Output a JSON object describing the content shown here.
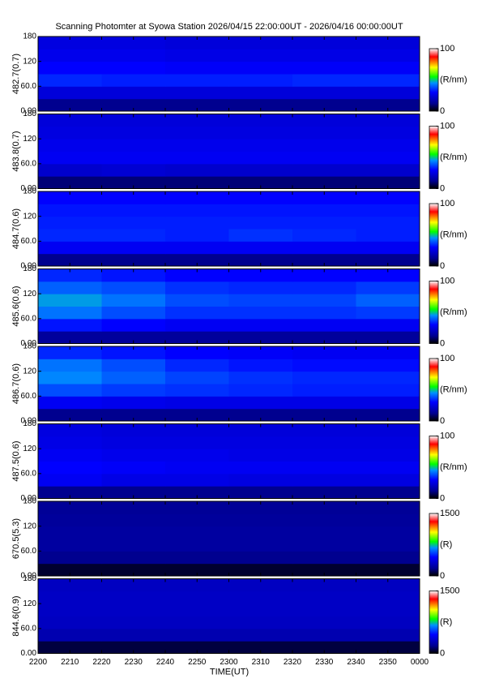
{
  "chart_data": [
    {
      "type": "heatmap",
      "title": "Scanning Photomter at Syowa Station 2026/04/15 22:00:00UT - 2026/04/16 00:00:00UT",
      "ylabel": "482.7(0.7)",
      "ylim": [
        0,
        180
      ],
      "yticks": [
        {
          "value": 0,
          "label": "0.00"
        },
        {
          "value": 60,
          "label": "60.0"
        },
        120,
        180
      ],
      "clim": [
        0,
        100
      ],
      "cticks": [
        0,
        100
      ],
      "clabel": "(R/nm)",
      "z": [
        [
          12,
          12,
          12,
          12,
          12,
          12
        ],
        [
          24,
          24,
          24,
          24,
          24,
          24
        ],
        [
          34,
          33,
          33,
          33,
          34,
          34
        ],
        [
          30,
          30,
          29,
          29,
          29,
          29
        ],
        [
          27,
          27,
          26,
          26,
          26,
          26
        ],
        [
          25,
          25,
          24,
          24,
          24,
          24
        ]
      ]
    },
    {
      "type": "heatmap",
      "ylabel": "483.8(0.7)",
      "ylim": [
        0,
        180
      ],
      "yticks": [
        {
          "value": 0,
          "label": "0.00"
        },
        {
          "value": 60,
          "label": "60.0"
        },
        120,
        180
      ],
      "clim": [
        0,
        100
      ],
      "cticks": [
        0,
        100
      ],
      "clabel": "(R/nm)",
      "z": [
        [
          10,
          10,
          10,
          10,
          10,
          10
        ],
        [
          22,
          23,
          22,
          22,
          22,
          22
        ],
        [
          28,
          28,
          28,
          28,
          28,
          28
        ],
        [
          27,
          27,
          27,
          27,
          27,
          27
        ],
        [
          25,
          25,
          25,
          25,
          25,
          25
        ],
        [
          24,
          24,
          24,
          24,
          24,
          24
        ]
      ]
    },
    {
      "type": "heatmap",
      "ylabel": "484.7(0.6)",
      "ylim": [
        0,
        180
      ],
      "yticks": [
        {
          "value": 0,
          "label": "0.00"
        },
        {
          "value": 60,
          "label": "60.0"
        },
        120,
        180
      ],
      "clim": [
        0,
        100
      ],
      "cticks": [
        0,
        100
      ],
      "clabel": "(R/nm)",
      "z": [
        [
          12,
          12,
          12,
          12,
          12,
          12
        ],
        [
          28,
          28,
          28,
          28,
          28,
          28
        ],
        [
          34,
          34,
          33,
          35,
          34,
          33
        ],
        [
          33,
          33,
          33,
          33,
          33,
          33
        ],
        [
          32,
          32,
          32,
          32,
          32,
          32
        ],
        [
          30,
          30,
          30,
          30,
          30,
          30
        ]
      ]
    },
    {
      "type": "heatmap",
      "ylabel": "485.6(0.6)",
      "ylim": [
        0,
        180
      ],
      "yticks": [
        {
          "value": 0,
          "label": "0.00"
        },
        {
          "value": 60,
          "label": "60.0"
        },
        120,
        180
      ],
      "clim": [
        0,
        100
      ],
      "cticks": [
        0,
        100
      ],
      "clabel": "(R/nm)",
      "z": [
        [
          14,
          14,
          14,
          14,
          14,
          14
        ],
        [
          32,
          30,
          28,
          28,
          28,
          28
        ],
        [
          42,
          38,
          35,
          35,
          35,
          36
        ],
        [
          46,
          42,
          38,
          37,
          37,
          40
        ],
        [
          40,
          38,
          35,
          34,
          34,
          36
        ],
        [
          34,
          32,
          30,
          30,
          30,
          30
        ]
      ]
    },
    {
      "type": "heatmap",
      "ylabel": "486.7(0.6)",
      "ylim": [
        0,
        180
      ],
      "yticks": [
        {
          "value": 0,
          "label": "0.00"
        },
        {
          "value": 60,
          "label": "60.0"
        },
        120,
        180
      ],
      "clim": [
        0,
        100
      ],
      "cticks": [
        0,
        100
      ],
      "clabel": "(R/nm)",
      "z": [
        [
          12,
          12,
          12,
          12,
          12,
          12
        ],
        [
          28,
          27,
          26,
          26,
          26,
          26
        ],
        [
          38,
          36,
          35,
          34,
          33,
          33
        ],
        [
          44,
          40,
          37,
          35,
          34,
          34
        ],
        [
          42,
          38,
          34,
          32,
          31,
          31
        ],
        [
          34,
          32,
          30,
          29,
          28,
          28
        ]
      ]
    },
    {
      "type": "heatmap",
      "ylabel": "487.5(0.6)",
      "ylim": [
        0,
        180
      ],
      "yticks": [
        {
          "value": 0,
          "label": "0.00"
        },
        {
          "value": 60,
          "label": "60.0"
        },
        120,
        180
      ],
      "clim": [
        0,
        100
      ],
      "cticks": [
        0,
        100
      ],
      "clabel": "(R/nm)",
      "z": [
        [
          12,
          12,
          12,
          12,
          12,
          12
        ],
        [
          28,
          26,
          26,
          25,
          25,
          25
        ],
        [
          30,
          29,
          28,
          28,
          28,
          28
        ],
        [
          28,
          27,
          27,
          26,
          26,
          26
        ],
        [
          26,
          25,
          25,
          25,
          25,
          25
        ],
        [
          25,
          24,
          24,
          24,
          24,
          24
        ]
      ]
    },
    {
      "type": "heatmap",
      "ylabel": "670.5(5.3)",
      "ylim": [
        0,
        180
      ],
      "yticks": [
        {
          "value": 0,
          "label": "0.00"
        },
        {
          "value": 60,
          "label": "60.0"
        },
        120,
        180
      ],
      "clim": [
        0,
        1500
      ],
      "cticks": [
        0,
        1500
      ],
      "clabel": "(R)",
      "z": [
        [
          60,
          60,
          60,
          60,
          60,
          60
        ],
        [
          180,
          180,
          180,
          180,
          180,
          180
        ],
        [
          220,
          220,
          220,
          220,
          220,
          220
        ],
        [
          220,
          220,
          220,
          220,
          220,
          220
        ],
        [
          210,
          210,
          210,
          210,
          210,
          210
        ],
        [
          200,
          200,
          200,
          200,
          200,
          200
        ]
      ]
    },
    {
      "type": "heatmap",
      "ylabel": "844.6(0.9)",
      "ylim": [
        0,
        180
      ],
      "yticks": [
        {
          "value": 0,
          "label": "0.00"
        },
        {
          "value": 60,
          "label": "60.0"
        },
        120,
        180
      ],
      "clim": [
        0,
        1500
      ],
      "cticks": [
        0,
        1500
      ],
      "clabel": "(R)",
      "z": [
        [
          80,
          80,
          80,
          80,
          80,
          80
        ],
        [
          260,
          260,
          260,
          260,
          260,
          260
        ],
        [
          300,
          300,
          300,
          300,
          300,
          300
        ],
        [
          310,
          310,
          310,
          310,
          310,
          310
        ],
        [
          310,
          310,
          310,
          310,
          310,
          310
        ],
        [
          300,
          300,
          300,
          300,
          300,
          300
        ]
      ],
      "xlabel": "TIME(UT)",
      "xlim": [
        0,
        120
      ],
      "xticks": [
        {
          "value": 0,
          "label": "2200"
        },
        {
          "value": 10,
          "label": "2210"
        },
        {
          "value": 20,
          "label": "2220"
        },
        {
          "value": 30,
          "label": "2230"
        },
        {
          "value": 40,
          "label": "2240"
        },
        {
          "value": 50,
          "label": "2250"
        },
        {
          "value": 60,
          "label": "2300"
        },
        {
          "value": 70,
          "label": "2310"
        },
        {
          "value": 80,
          "label": "2320"
        },
        {
          "value": 90,
          "label": "2330"
        },
        {
          "value": 100,
          "label": "2340"
        },
        {
          "value": 110,
          "label": "2350"
        },
        {
          "value": 120,
          "label": "0000"
        }
      ]
    }
  ]
}
